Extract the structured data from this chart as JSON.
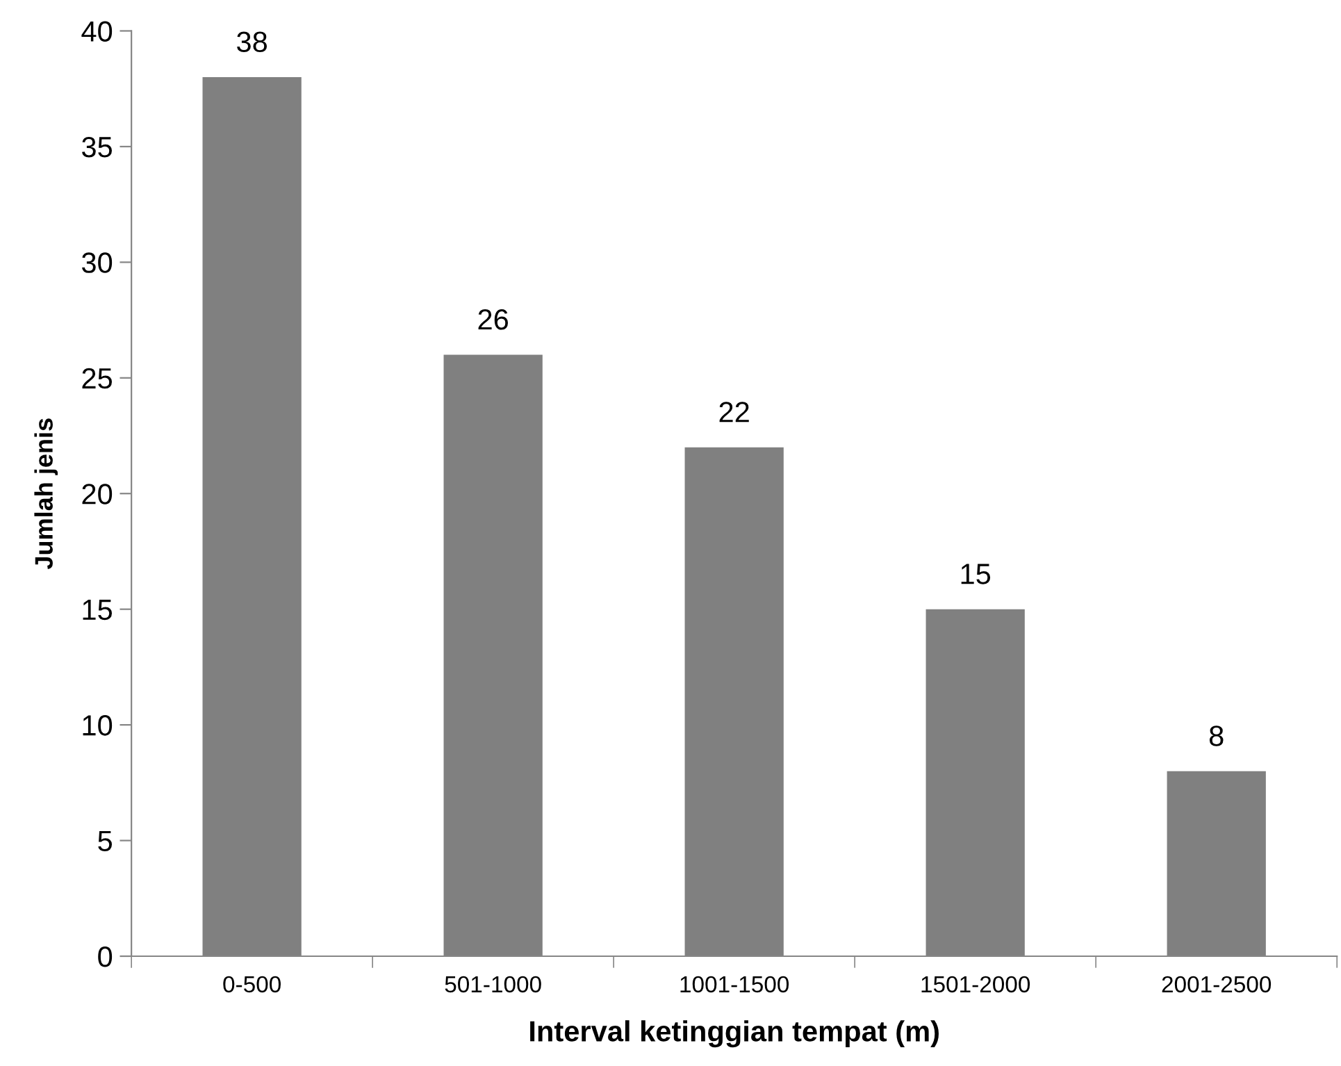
{
  "chart_data": {
    "type": "bar",
    "xlabel": "Interval ketinggian tempat (m)",
    "ylabel": "Jumlah jenis",
    "categories": [
      "0-500",
      "501-1000",
      "1001-1500",
      "1501-2000",
      "2001-2500"
    ],
    "values": [
      38,
      26,
      22,
      15,
      8
    ],
    "color": "#808080",
    "ylim": [
      0,
      40
    ],
    "yticks": [
      0,
      5,
      10,
      15,
      20,
      25,
      30,
      35,
      40
    ],
    "grid": false,
    "data_labels": true
  }
}
